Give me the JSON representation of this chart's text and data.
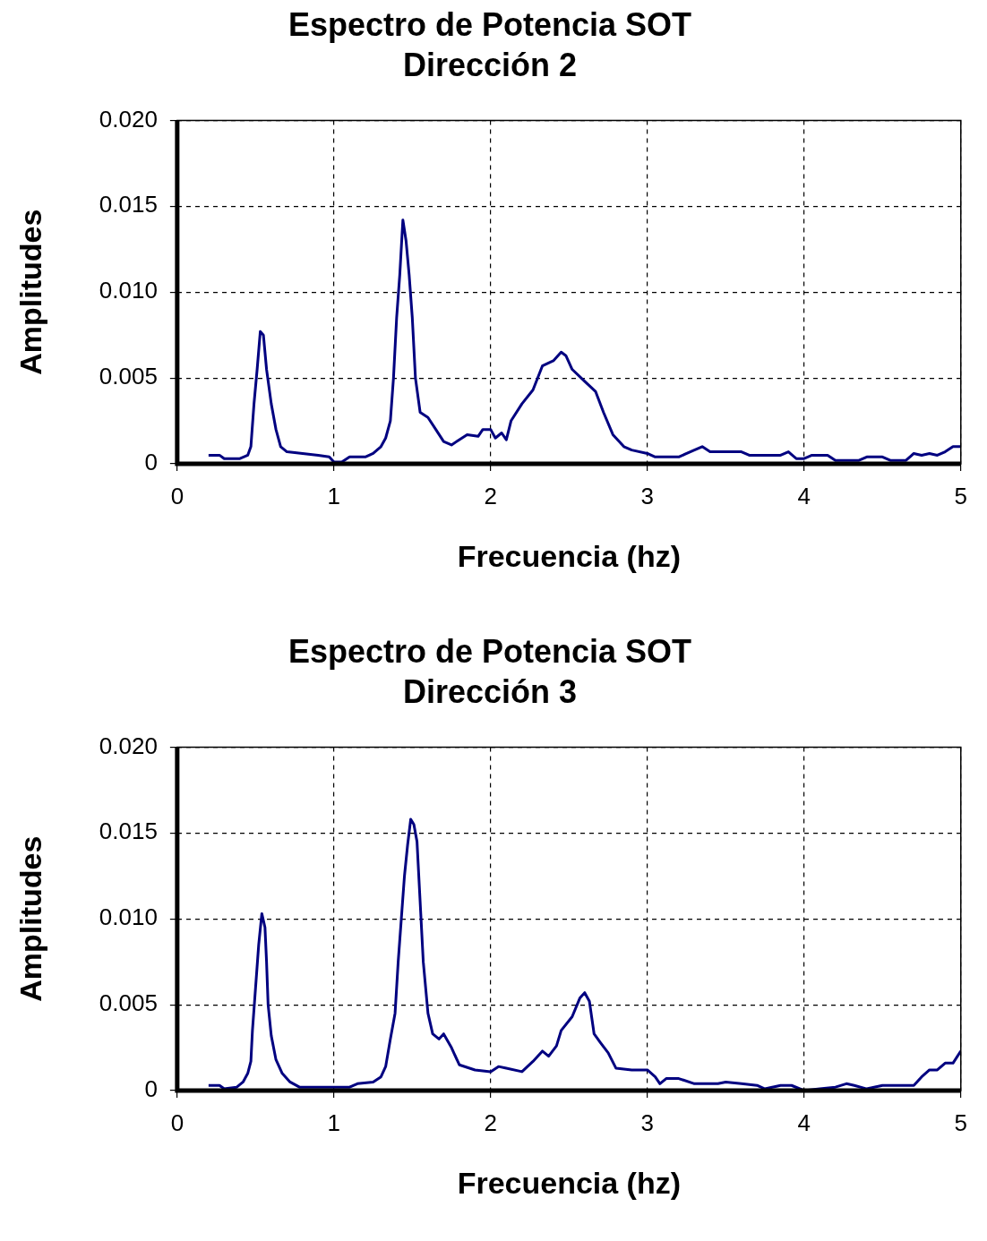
{
  "chart_data": [
    {
      "type": "line",
      "title": "Espectro de Potencia SOT",
      "subtitle": "Dirección 2",
      "xlabel": "Frecuencia (hz)",
      "ylabel": "Amplitudes",
      "xlim": [
        0,
        5
      ],
      "xticks": [
        0,
        1,
        2,
        3,
        4,
        5
      ],
      "ylim": [
        0,
        0.02
      ],
      "yticks": [
        0,
        {
          "value": 0.005,
          "label": "0.005"
        },
        {
          "value": 0.01,
          "label": "0.010"
        },
        {
          "value": 0.015,
          "label": "0.015"
        },
        {
          "value": 0.02,
          "label": "0.020"
        }
      ],
      "grid": true,
      "legend": false,
      "marker": "none",
      "line_style": "solid",
      "series": [
        {
          "color": "#000080",
          "x": [
            0.2,
            0.27,
            0.3,
            0.4,
            0.45,
            0.47,
            0.49,
            0.51,
            0.53,
            0.55,
            0.57,
            0.6,
            0.63,
            0.66,
            0.7,
            0.8,
            0.9,
            0.97,
            1.0,
            1.05,
            1.1,
            1.2,
            1.25,
            1.3,
            1.33,
            1.36,
            1.38,
            1.4,
            1.42,
            1.44,
            1.46,
            1.48,
            1.5,
            1.52,
            1.55,
            1.6,
            1.65,
            1.7,
            1.75,
            1.85,
            1.92,
            1.95,
            2.0,
            2.03,
            2.07,
            2.1,
            2.13,
            2.2,
            2.27,
            2.33,
            2.4,
            2.45,
            2.48,
            2.52,
            2.6,
            2.67,
            2.72,
            2.78,
            2.85,
            2.9,
            3.0,
            3.05,
            3.2,
            3.3,
            3.35,
            3.4,
            3.6,
            3.65,
            3.85,
            3.9,
            3.95,
            4.0,
            4.05,
            4.15,
            4.2,
            4.35,
            4.4,
            4.5,
            4.55,
            4.65,
            4.7,
            4.75,
            4.8,
            4.85,
            4.9,
            4.95,
            5.0
          ],
          "values": [
            0.0005,
            0.0005,
            0.0003,
            0.0003,
            0.0005,
            0.001,
            0.0035,
            0.0055,
            0.0077,
            0.0075,
            0.0055,
            0.0035,
            0.002,
            0.001,
            0.0007,
            0.0006,
            0.0005,
            0.0004,
            0.0001,
            0.0001,
            0.0004,
            0.0004,
            0.0006,
            0.001,
            0.0015,
            0.0025,
            0.005,
            0.0085,
            0.011,
            0.0142,
            0.013,
            0.011,
            0.0085,
            0.005,
            0.003,
            0.0027,
            0.002,
            0.0013,
            0.0011,
            0.0017,
            0.0016,
            0.002,
            0.002,
            0.0015,
            0.0018,
            0.0014,
            0.0025,
            0.0035,
            0.0043,
            0.0057,
            0.006,
            0.0065,
            0.0063,
            0.0055,
            0.0048,
            0.0042,
            0.003,
            0.0017,
            0.001,
            0.0008,
            0.0006,
            0.0004,
            0.0004,
            0.0008,
            0.001,
            0.0007,
            0.0007,
            0.0005,
            0.0005,
            0.0007,
            0.0003,
            0.0003,
            0.0005,
            0.0005,
            0.0002,
            0.0002,
            0.0004,
            0.0004,
            0.0002,
            0.0002,
            0.0006,
            0.0005,
            0.0006,
            0.0005,
            0.0007,
            0.001,
            0.001
          ]
        }
      ]
    },
    {
      "type": "line",
      "title": "Espectro de Potencia SOT",
      "subtitle": "Dirección 3",
      "xlabel": "Frecuencia (hz)",
      "ylabel": "Amplitudes",
      "xlim": [
        0,
        5
      ],
      "xticks": [
        0,
        1,
        2,
        3,
        4,
        5
      ],
      "ylim": [
        0,
        0.02
      ],
      "yticks": [
        0,
        {
          "value": 0.005,
          "label": "0.005"
        },
        {
          "value": 0.01,
          "label": "0.010"
        },
        {
          "value": 0.015,
          "label": "0.015"
        },
        {
          "value": 0.02,
          "label": "0.020"
        }
      ],
      "grid": true,
      "legend": false,
      "marker": "none",
      "line_style": "solid",
      "series": [
        {
          "color": "#000080",
          "x": [
            0.2,
            0.27,
            0.3,
            0.38,
            0.42,
            0.45,
            0.47,
            0.48,
            0.5,
            0.52,
            0.54,
            0.56,
            0.57,
            0.58,
            0.6,
            0.63,
            0.67,
            0.72,
            0.78,
            1.0,
            1.1,
            1.15,
            1.25,
            1.3,
            1.33,
            1.36,
            1.39,
            1.41,
            1.43,
            1.45,
            1.47,
            1.49,
            1.51,
            1.53,
            1.55,
            1.57,
            1.6,
            1.63,
            1.67,
            1.7,
            1.75,
            1.8,
            1.9,
            2.0,
            2.05,
            2.1,
            2.2,
            2.27,
            2.33,
            2.37,
            2.42,
            2.45,
            2.52,
            2.57,
            2.6,
            2.63,
            2.66,
            2.7,
            2.75,
            2.8,
            2.9,
            3.0,
            3.05,
            3.08,
            3.12,
            3.2,
            3.3,
            3.45,
            3.5,
            3.6,
            3.7,
            3.75,
            3.85,
            3.92,
            4.0,
            4.1,
            4.2,
            4.27,
            4.32,
            4.4,
            4.5,
            4.7,
            4.75,
            4.8,
            4.85,
            4.9,
            4.95,
            5.0
          ],
          "values": [
            0.0003,
            0.0003,
            0.0001,
            0.0002,
            0.0005,
            0.001,
            0.0017,
            0.0035,
            0.006,
            0.0085,
            0.0103,
            0.0095,
            0.0075,
            0.005,
            0.0032,
            0.0018,
            0.001,
            0.0005,
            0.0002,
            0.0002,
            0.0002,
            0.0004,
            0.0005,
            0.0008,
            0.0014,
            0.003,
            0.0045,
            0.0075,
            0.01,
            0.0125,
            0.0143,
            0.0158,
            0.0155,
            0.0145,
            0.011,
            0.0075,
            0.0045,
            0.0033,
            0.003,
            0.0033,
            0.0025,
            0.0015,
            0.0012,
            0.0011,
            0.0014,
            0.0013,
            0.0011,
            0.0017,
            0.0023,
            0.002,
            0.0026,
            0.0035,
            0.0043,
            0.0054,
            0.0057,
            0.0052,
            0.0033,
            0.0028,
            0.0022,
            0.0013,
            0.0012,
            0.0012,
            0.0008,
            0.0004,
            0.0007,
            0.0007,
            0.0004,
            0.0004,
            0.0005,
            0.0004,
            0.0003,
            0.0001,
            0.0003,
            0.0003,
            0,
            0.0001,
            0.0002,
            0.0004,
            0.0003,
            0.0001,
            0.0003,
            0.0003,
            0.0008,
            0.0012,
            0.0012,
            0.0016,
            0.0016,
            0.0023
          ]
        }
      ]
    }
  ]
}
